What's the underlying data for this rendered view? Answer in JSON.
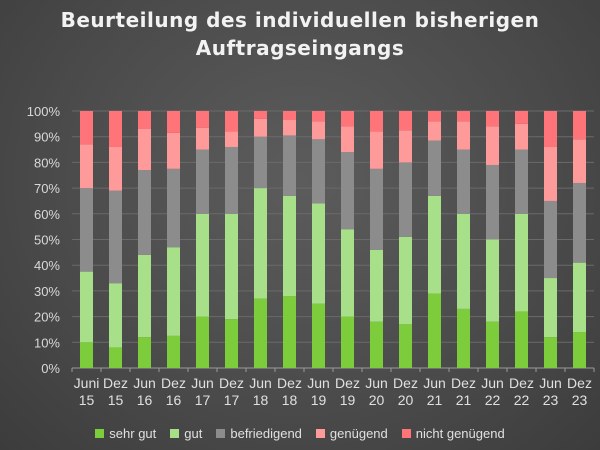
{
  "chart_data": {
    "type": "bar",
    "stacked": true,
    "percent_stacked": true,
    "title": "Beurteilung des individuellen bisherigen Auftragseingangs",
    "title_lines": [
      "Beurteilung des individuellen bisherigen",
      "Auftragseingangs"
    ],
    "categories": [
      [
        "Juni",
        "15"
      ],
      [
        "Dez",
        "15"
      ],
      [
        "Jun",
        "16"
      ],
      [
        "Dez",
        "16"
      ],
      [
        "Jun",
        "17"
      ],
      [
        "Dez",
        "17"
      ],
      [
        "Jun",
        "18"
      ],
      [
        "Dez",
        "18"
      ],
      [
        "Jun",
        "19"
      ],
      [
        "Dez",
        "19"
      ],
      [
        "Jun",
        "20"
      ],
      [
        "Dez",
        "20"
      ],
      [
        "Jun",
        "21"
      ],
      [
        "Dez",
        "21"
      ],
      [
        "Jun",
        "22"
      ],
      [
        "Dez",
        "22"
      ],
      [
        "Jun",
        "23"
      ],
      [
        "Dez",
        "23"
      ]
    ],
    "ylim": [
      0,
      100
    ],
    "yticks": [
      "0%",
      "10%",
      "20%",
      "30%",
      "40%",
      "50%",
      "60%",
      "70%",
      "80%",
      "90%",
      "100%"
    ],
    "grid": true,
    "legend_position": "bottom",
    "series": [
      {
        "name": "sehr gut",
        "color": "#7ccc3c",
        "values": [
          10,
          8,
          12,
          12.5,
          20,
          19,
          27,
          28,
          25,
          20,
          18,
          17,
          29,
          23,
          18,
          22,
          12,
          14
        ]
      },
      {
        "name": "gut",
        "color": "#a8e08a",
        "values": [
          27.5,
          25,
          32,
          34.5,
          40,
          41,
          43,
          39,
          39,
          34,
          28,
          34,
          38,
          37,
          32,
          38,
          23,
          27
        ]
      },
      {
        "name": "befriedigend",
        "color": "#8c8c8c",
        "values": [
          32.5,
          36,
          33,
          30.5,
          25,
          26,
          20,
          23.5,
          25,
          30,
          31.5,
          29,
          21.5,
          25,
          29,
          25,
          30,
          31
        ]
      },
      {
        "name": "genügend",
        "color": "#ff9a9a",
        "values": [
          17,
          17,
          16,
          14,
          8.5,
          6,
          7,
          6,
          7,
          10,
          14.5,
          12.5,
          7.5,
          11,
          15,
          10,
          21,
          17
        ]
      },
      {
        "name": "nicht genügend",
        "color": "#ff7478",
        "values": [
          13,
          14,
          7,
          8.5,
          6.5,
          8,
          3,
          3.5,
          4,
          6,
          8,
          7.5,
          4,
          4,
          6,
          5,
          14,
          11
        ]
      }
    ]
  }
}
